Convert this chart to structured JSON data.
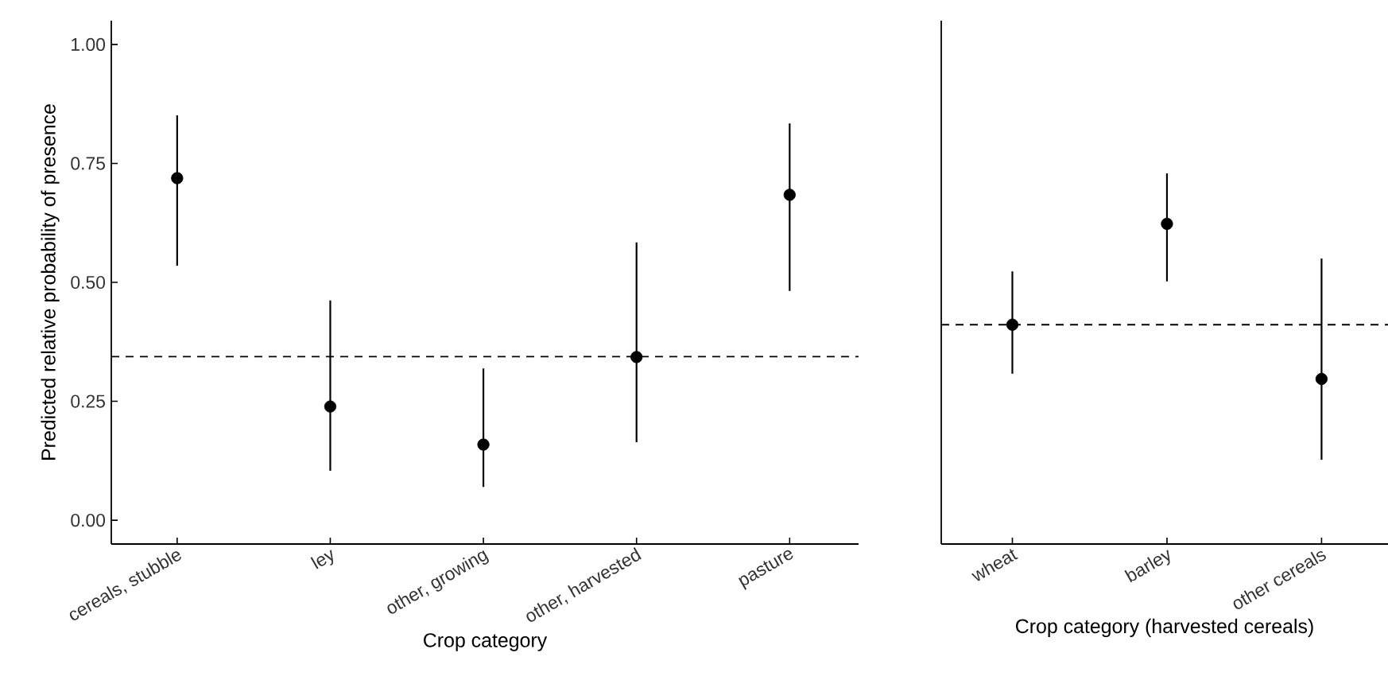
{
  "chart_data": [
    {
      "type": "scatter",
      "xlabel": "Crop category",
      "ylabel": "Predicted relative probability of presence",
      "categories": [
        "cereals, stubble",
        "ley",
        "other, growing",
        "other, harvested",
        "pasture"
      ],
      "series": [
        {
          "color": "#000000",
          "values": [
            0.719,
            0.239,
            0.159,
            0.343,
            0.684
          ],
          "errors": [
            [
              0.535,
              0.851
            ],
            [
              0.104,
              0.462
            ],
            [
              0.07,
              0.319
            ],
            [
              0.164,
              0.584
            ],
            [
              0.482,
              0.834
            ]
          ]
        }
      ],
      "ylim": [
        -0.05,
        1.05
      ],
      "yticks": [
        {
          "value": 0,
          "label": "0.00"
        },
        {
          "value": 0.25,
          "label": "0.25"
        },
        {
          "value": 0.5,
          "label": "0.50"
        },
        {
          "value": 0.75,
          "label": "0.75"
        },
        {
          "value": 1,
          "label": "1.00"
        }
      ],
      "ref_lines": [
        {
          "axis": "y",
          "value": 0.344,
          "line_style": "dashed",
          "color": "#000000"
        }
      ]
    },
    {
      "type": "scatter",
      "xlabel": "Crop category (harvested cereals)",
      "categories": [
        "wheat",
        "barley",
        "other cereals"
      ],
      "series": [
        {
          "color": "#000000",
          "values": [
            0.411,
            0.623,
            0.297
          ],
          "errors": [
            [
              0.308,
              0.523
            ],
            [
              0.502,
              0.729
            ],
            [
              0.127,
              0.55
            ]
          ]
        }
      ],
      "ylim": [
        -0.05,
        1.05
      ],
      "tick_labels": "x",
      "ref_lines": [
        {
          "axis": "y",
          "value": 0.411,
          "line_style": "dashed",
          "color": "#000000"
        }
      ]
    }
  ]
}
